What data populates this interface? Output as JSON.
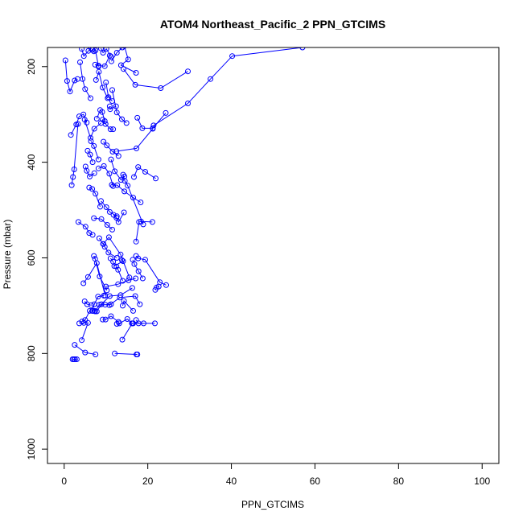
{
  "chart_data": {
    "type": "line",
    "title": "ATOM4 Northeast_Pacific_2 PPN_GTCIMS",
    "xlabel": "PPN_GTCIMS",
    "ylabel": "Pressure (mbar)",
    "xlim": [
      0,
      100
    ],
    "ylim": [
      1030,
      160
    ],
    "y_reversed": true,
    "x_ticks": [
      0,
      20,
      40,
      60,
      80,
      100
    ],
    "y_ticks": [
      200,
      400,
      600,
      800,
      1000
    ],
    "grid": false,
    "legend": "none",
    "colors": {
      "series": "#0000ff",
      "axis": "#000000",
      "background": "#ffffff"
    },
    "series": [
      {
        "x": [
          2.6,
          3.0,
          2.3,
          2.0
        ],
        "y": [
          812,
          812,
          812,
          812
        ]
      },
      {
        "x": [
          2.5,
          5.0,
          7.5
        ],
        "y": [
          782,
          798,
          802
        ]
      },
      {
        "x": [
          12.1,
          17.3,
          17.5
        ],
        "y": [
          800,
          802,
          802
        ]
      },
      {
        "x": [
          13.9,
          16.3,
          16.5,
          19.0
        ],
        "y": [
          771,
          737,
          737,
          737
        ]
      },
      {
        "x": [
          3.6,
          4.7,
          5.7,
          4.2
        ],
        "y": [
          737,
          736,
          736,
          772
        ]
      },
      {
        "x": [
          4.3,
          5.0,
          6.1,
          7.3
        ],
        "y": [
          733,
          730,
          711,
          711
        ]
      },
      {
        "x": [
          7.4,
          8.4,
          9.8,
          11.2
        ],
        "y": [
          712,
          698,
          698,
          697
        ]
      },
      {
        "x": [
          9.2,
          9.9,
          11.2,
          13.0
        ],
        "y": [
          729,
          729,
          722,
          734
        ]
      },
      {
        "x": [
          12.6,
          13.2,
          15.1,
          16.2
        ],
        "y": [
          738,
          737,
          728,
          737
        ]
      },
      {
        "x": [
          17.2,
          17.8,
          21.7
        ],
        "y": [
          730,
          737,
          737
        ]
      },
      {
        "x": [
          6.8,
          7.8,
          8.9,
          10.9,
          13.5,
          16.3
        ],
        "y": [
          711,
          712,
          697,
          680,
          678,
          663
        ]
      },
      {
        "x": [
          4.9,
          5.5,
          6.5
        ],
        "y": [
          691,
          697,
          699
        ]
      },
      {
        "x": [
          6.7,
          7.2,
          8.1,
          9.5
        ],
        "y": [
          711,
          697,
          681,
          679
        ]
      },
      {
        "x": [
          10.8,
          13.3,
          17.0,
          18.1
        ],
        "y": [
          699,
          683,
          680,
          697
        ]
      },
      {
        "x": [
          14.0,
          14.3,
          16.5
        ],
        "y": [
          700,
          690,
          711
        ]
      },
      {
        "x": [
          4.6,
          5.7,
          7.8,
          9.8
        ],
        "y": [
          653,
          640,
          611,
          679
        ]
      },
      {
        "x": [
          10.0,
          12.9,
          15.4,
          17.1
        ],
        "y": [
          660,
          655,
          647,
          643
        ]
      },
      {
        "x": [
          12.5,
          12.9,
          14.0
        ],
        "y": [
          618,
          625,
          648
        ]
      },
      {
        "x": [
          7.1,
          7.4,
          8.5,
          10.2
        ],
        "y": [
          596,
          602,
          639,
          668
        ]
      },
      {
        "x": [
          11.1,
          11.7,
          12.0,
          14.1,
          13.8
        ],
        "y": [
          601,
          608,
          617,
          607,
          605
        ]
      },
      {
        "x": [
          17.2,
          17.7,
          19.4,
          22.9,
          24.4
        ],
        "y": [
          596,
          601,
          604,
          651,
          657
        ]
      },
      {
        "x": [
          9.4,
          9.7,
          10.6,
          12.6
        ],
        "y": [
          571,
          577,
          589,
          600
        ]
      },
      {
        "x": [
          16.4,
          16.8,
          17.8,
          18.8
        ],
        "y": [
          604,
          613,
          628,
          643
        ]
      },
      {
        "x": [
          21.8,
          22.1,
          22.6
        ],
        "y": [
          667,
          662,
          660
        ]
      },
      {
        "x": [
          8.4,
          9.3,
          10.7,
          13.5,
          15.6
        ],
        "y": [
          559,
          571,
          557,
          593,
          641
        ]
      },
      {
        "x": [
          3.4,
          5.1,
          6.0,
          6.8
        ],
        "y": [
          525,
          535,
          548,
          552
        ]
      },
      {
        "x": [
          7.1,
          8.9,
          10.3,
          11.5
        ],
        "y": [
          517,
          519,
          531,
          541
        ]
      },
      {
        "x": [
          11.8,
          12.5,
          13.0,
          14.3
        ],
        "y": [
          510,
          516,
          525,
          505
        ]
      },
      {
        "x": [
          17.2,
          17.9,
          18.4,
          21.1
        ],
        "y": [
          566,
          525,
          524,
          525
        ]
      },
      {
        "x": [
          8.8,
          10.1,
          10.9,
          12.6
        ],
        "y": [
          481,
          494,
          504,
          513
        ]
      },
      {
        "x": [
          11.4,
          12.7,
          14.4,
          16.5,
          18.3
        ],
        "y": [
          447,
          448,
          461,
          474,
          484
        ]
      },
      {
        "x": [
          6.0,
          6.7,
          7.5,
          8.6
        ],
        "y": [
          453,
          456,
          466,
          493
        ]
      },
      {
        "x": [
          14.1,
          14.5,
          15.2,
          18.9
        ],
        "y": [
          426,
          439,
          449,
          530
        ]
      },
      {
        "x": [
          16.7,
          17.7,
          19.4,
          21.9
        ],
        "y": [
          431,
          410,
          420,
          434
        ]
      },
      {
        "x": [
          1.8,
          2.1,
          2.4,
          3.3
        ],
        "y": [
          448,
          431,
          415,
          320
        ]
      },
      {
        "x": [
          5.1,
          5.4,
          6.1,
          7.2
        ],
        "y": [
          409,
          418,
          430,
          423
        ]
      },
      {
        "x": [
          8.2,
          9.5,
          10.8,
          11.7
        ],
        "y": [
          413,
          408,
          424,
          450
        ]
      },
      {
        "x": [
          11.2,
          12.1,
          13.6,
          14.4
        ],
        "y": [
          394,
          419,
          437,
          430
        ]
      },
      {
        "x": [
          5.6,
          6.2,
          6.8
        ],
        "y": [
          376,
          384,
          400
        ]
      },
      {
        "x": [
          6.4,
          7.1,
          8.2
        ],
        "y": [
          356,
          366,
          394
        ]
      },
      {
        "x": [
          9.4,
          10.2,
          11.6,
          13.0
        ],
        "y": [
          357,
          365,
          378,
          387
        ]
      },
      {
        "x": [
          17.5,
          18.7,
          21.2,
          24.3
        ],
        "y": [
          307,
          329,
          329,
          297
        ]
      },
      {
        "x": [
          12.5,
          17.3,
          21.2
        ],
        "y": [
          377,
          371,
          330
        ]
      },
      {
        "x": [
          4.9,
          6.3,
          7.2,
          8.8
        ],
        "y": [
          311,
          349,
          330,
          318
        ]
      },
      {
        "x": [
          9.2,
          9.9,
          11.1,
          11.7
        ],
        "y": [
          311,
          320,
          331,
          331
        ]
      },
      {
        "x": [
          11.5,
          12.6,
          13.8,
          14.9
        ],
        "y": [
          249,
          296,
          310,
          318
        ]
      },
      {
        "x": [
          1.6,
          2.9,
          3.6,
          4.6,
          5.4
        ],
        "y": [
          343,
          321,
          304,
          300,
          317
        ]
      },
      {
        "x": [
          7.8,
          8.6,
          9.1,
          9.7
        ],
        "y": [
          309,
          291,
          295,
          314
        ]
      },
      {
        "x": [
          10.9,
          11.0,
          12.4
        ],
        "y": [
          283,
          289,
          283
        ]
      },
      {
        "x": [
          0.3,
          0.7,
          1.4,
          2.5,
          3.2
        ],
        "y": [
          187,
          230,
          252,
          229,
          226
        ]
      },
      {
        "x": [
          3.8,
          4.4,
          5.0,
          6.3
        ],
        "y": [
          191,
          226,
          247,
          266
        ]
      },
      {
        "x": [
          7.6,
          8.3,
          9.2,
          10.4
        ],
        "y": [
          228,
          211,
          244,
          266
        ]
      },
      {
        "x": [
          7.4,
          8.2,
          9.7,
          10.9
        ],
        "y": [
          196,
          198,
          199,
          177
        ]
      },
      {
        "x": [
          10.0,
          10.6,
          11.5
        ],
        "y": [
          233,
          264,
          272
        ]
      },
      {
        "x": [
          14.4,
          15.3,
          13.6,
          17.2
        ],
        "y": [
          157,
          185,
          197,
          213
        ]
      },
      {
        "x": [
          4.2,
          4.7,
          5.8,
          6.5
        ],
        "y": [
          163,
          178,
          167,
          162
        ]
      },
      {
        "x": [
          6.7,
          7.1,
          7.5,
          8.2
        ],
        "y": [
          165,
          168,
          166,
          200
        ]
      },
      {
        "x": [
          8.8,
          9.3,
          10.1,
          11.2
        ],
        "y": [
          162,
          171,
          163,
          179
        ]
      },
      {
        "x": [
          13.9,
          12.6,
          11.3
        ],
        "y": [
          160,
          171,
          189
        ]
      },
      {
        "x": [
          14.2,
          17.0,
          23.1,
          29.6
        ],
        "y": [
          205,
          238,
          245,
          210
        ]
      },
      {
        "x": [
          21.4,
          29.6,
          35.0,
          40.2,
          57.0
        ],
        "y": [
          323,
          277,
          226,
          178,
          160
        ]
      }
    ]
  }
}
